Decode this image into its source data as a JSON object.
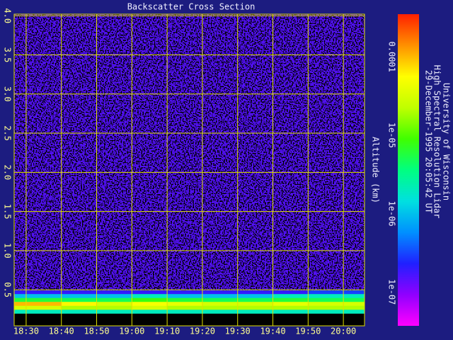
{
  "chart_data": {
    "type": "heatmap",
    "title": "Backscatter Cross Section",
    "ylabel": "Altitude (km)",
    "notes": [
      "University of Wisconsin",
      "High Spectral Resolution Lidar",
      "29-December-1995 20:05:42 UT"
    ],
    "xlim": [
      1106.6,
      1206
    ],
    "xticks": [
      {
        "value": 1110,
        "label": "18:30"
      },
      {
        "value": 1120,
        "label": "18:40"
      },
      {
        "value": 1130,
        "label": "18:50"
      },
      {
        "value": 1140,
        "label": "19:00"
      },
      {
        "value": 1150,
        "label": "19:10"
      },
      {
        "value": 1160,
        "label": "19:20"
      },
      {
        "value": 1170,
        "label": "19:30"
      },
      {
        "value": 1180,
        "label": "19:40"
      },
      {
        "value": 1190,
        "label": "19:50"
      },
      {
        "value": 1200,
        "label": "20:00"
      }
    ],
    "ylim": [
      0.04,
      4.02
    ],
    "yticks": [
      0.5,
      {
        "value": 1,
        "label": "1.0"
      },
      1.5,
      {
        "value": 2,
        "label": "2.0"
      },
      2.5,
      {
        "value": 3,
        "label": "3.0"
      },
      3.5,
      {
        "value": 4,
        "label": "4.0"
      }
    ],
    "x_bins": [
      1106.6,
      1120,
      1130,
      1140,
      1150,
      1160,
      1170,
      1180,
      1190,
      1200,
      1206
    ],
    "y_bins": [
      0.04,
      0.2,
      0.25,
      0.3,
      0.35,
      0.4,
      0.45,
      0.5,
      1.0,
      1.5,
      2.0,
      2.5,
      3.0,
      3.5,
      4.02
    ],
    "values": [
      [
        null,
        null,
        null,
        null,
        null,
        null,
        null,
        null,
        null,
        null
      ],
      [
        2e-06,
        2e-06,
        2e-06,
        2e-06,
        2e-06,
        2e-06,
        2e-06,
        2e-06,
        2e-06,
        2e-06
      ],
      [
        3e-05,
        2e-05,
        2e-05,
        3e-05,
        2e-05,
        2e-05,
        2e-05,
        2e-05,
        2e-05,
        2e-05
      ],
      [
        0.0001,
        6e-05,
        3e-05,
        5e-05,
        4e-05,
        3e-05,
        3e-05,
        4e-05,
        3e-05,
        3e-05
      ],
      [
        6e-06,
        5e-06,
        5e-06,
        8e-06,
        6e-06,
        5e-06,
        5e-06,
        6e-06,
        5e-06,
        5e-06
      ],
      [
        1e-06,
        1e-06,
        1e-06,
        2e-06,
        1e-06,
        1e-06,
        1e-06,
        2e-06,
        2e-06,
        2e-06
      ],
      [
        2e-07,
        2e-07,
        2e-07,
        2e-07,
        2e-07,
        2e-07,
        2e-07,
        2e-07,
        3e-07,
        3e-07
      ],
      [
        1.5e-07,
        1.5e-07,
        1.5e-07,
        1.5e-07,
        1.5e-07,
        1.5e-07,
        1.5e-07,
        1.5e-07,
        1.5e-07,
        1.5e-07
      ],
      [
        1.5e-07,
        1.5e-07,
        1.5e-07,
        1.5e-07,
        1.5e-07,
        1.5e-07,
        1.5e-07,
        1.5e-07,
        1.5e-07,
        1.5e-07
      ],
      [
        1.5e-07,
        1.5e-07,
        1.5e-07,
        1.5e-07,
        1.5e-07,
        1.5e-07,
        1.5e-07,
        1.5e-07,
        1.5e-07,
        1.5e-07
      ],
      [
        1.5e-07,
        1.5e-07,
        1.5e-07,
        1.5e-07,
        1.5e-07,
        1.5e-07,
        1.5e-07,
        1.5e-07,
        1.5e-07,
        1.5e-07
      ],
      [
        1.5e-07,
        1.5e-07,
        1.5e-07,
        1.5e-07,
        1.5e-07,
        1.5e-07,
        1.5e-07,
        1.5e-07,
        1.5e-07,
        1.5e-07
      ],
      [
        1.5e-07,
        1.5e-07,
        1.5e-07,
        1.5e-07,
        1.5e-07,
        1.5e-07,
        1.5e-07,
        1.5e-07,
        1.5e-07,
        1.5e-07
      ],
      [
        1.5e-07,
        1.5e-07,
        1.5e-07,
        1.5e-07,
        1.5e-07,
        1.5e-07,
        1.5e-07,
        1.5e-07,
        1.5e-07,
        1.5e-07
      ]
    ],
    "color_scale": "log",
    "clim": [
      3.7e-08,
      0.00035
    ],
    "cticks": [
      {
        "value": 1e-07,
        "label": "1e-07"
      },
      {
        "value": 1e-06,
        "label": "1e-06"
      },
      {
        "value": 1e-05,
        "label": "1e-05"
      },
      0.0001
    ],
    "colormap": [
      "#ff00ff",
      "#9000ff",
      "#2020ff",
      "#0090ff",
      "#00e0e0",
      "#00ff80",
      "#40ff00",
      "#c0ff00",
      "#ffff00",
      "#ff9000",
      "#ff2000"
    ],
    "grid": true,
    "grid_color": "#e0e000"
  }
}
